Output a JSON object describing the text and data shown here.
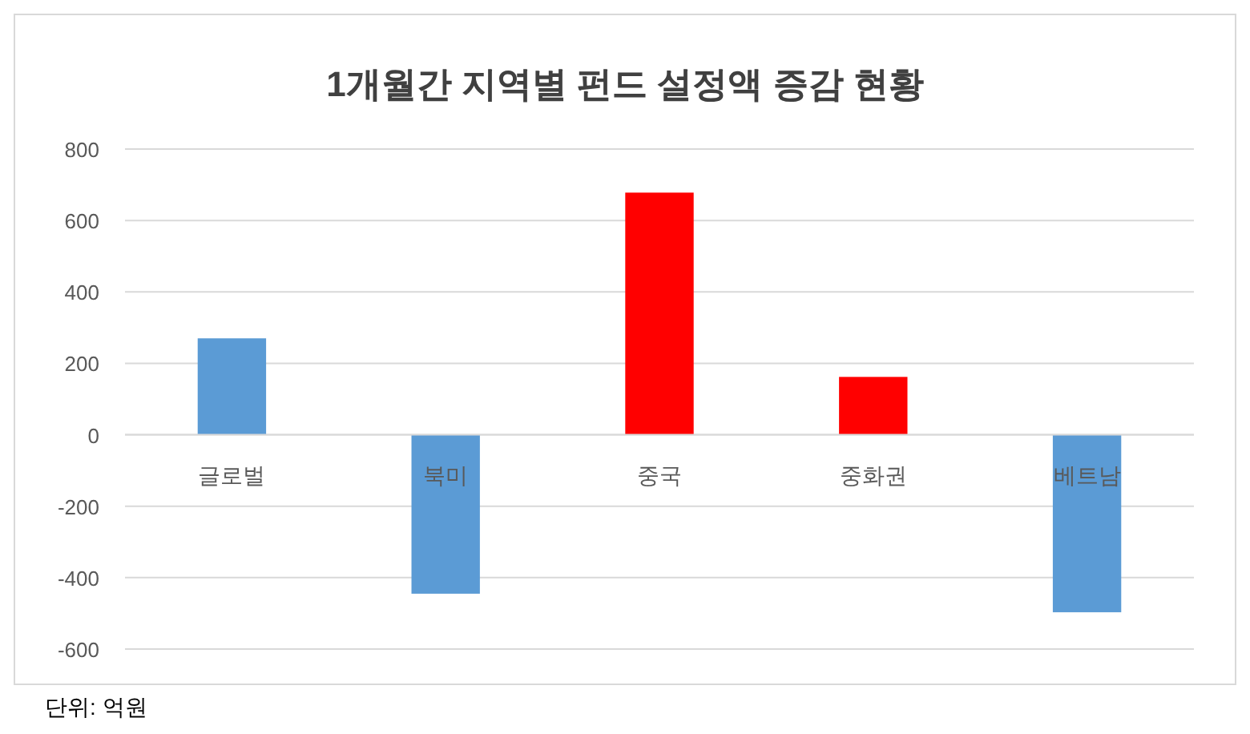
{
  "chart_data": {
    "type": "bar",
    "title": "1개월간 지역별 펀드 설정액 증감 현황",
    "categories": [
      "글로벌",
      "북미",
      "중국",
      "중화권",
      "베트남"
    ],
    "values": [
      270,
      -445,
      678,
      162,
      -497
    ],
    "colors": [
      "#5b9bd5",
      "#5b9bd5",
      "#ff0000",
      "#ff0000",
      "#5b9bd5"
    ],
    "ylim": [
      -600,
      800
    ],
    "yticks": [
      -600,
      -400,
      -200,
      0,
      200,
      400,
      600,
      800
    ],
    "grid": "y",
    "annotations": [
      "단위: 억원"
    ]
  }
}
